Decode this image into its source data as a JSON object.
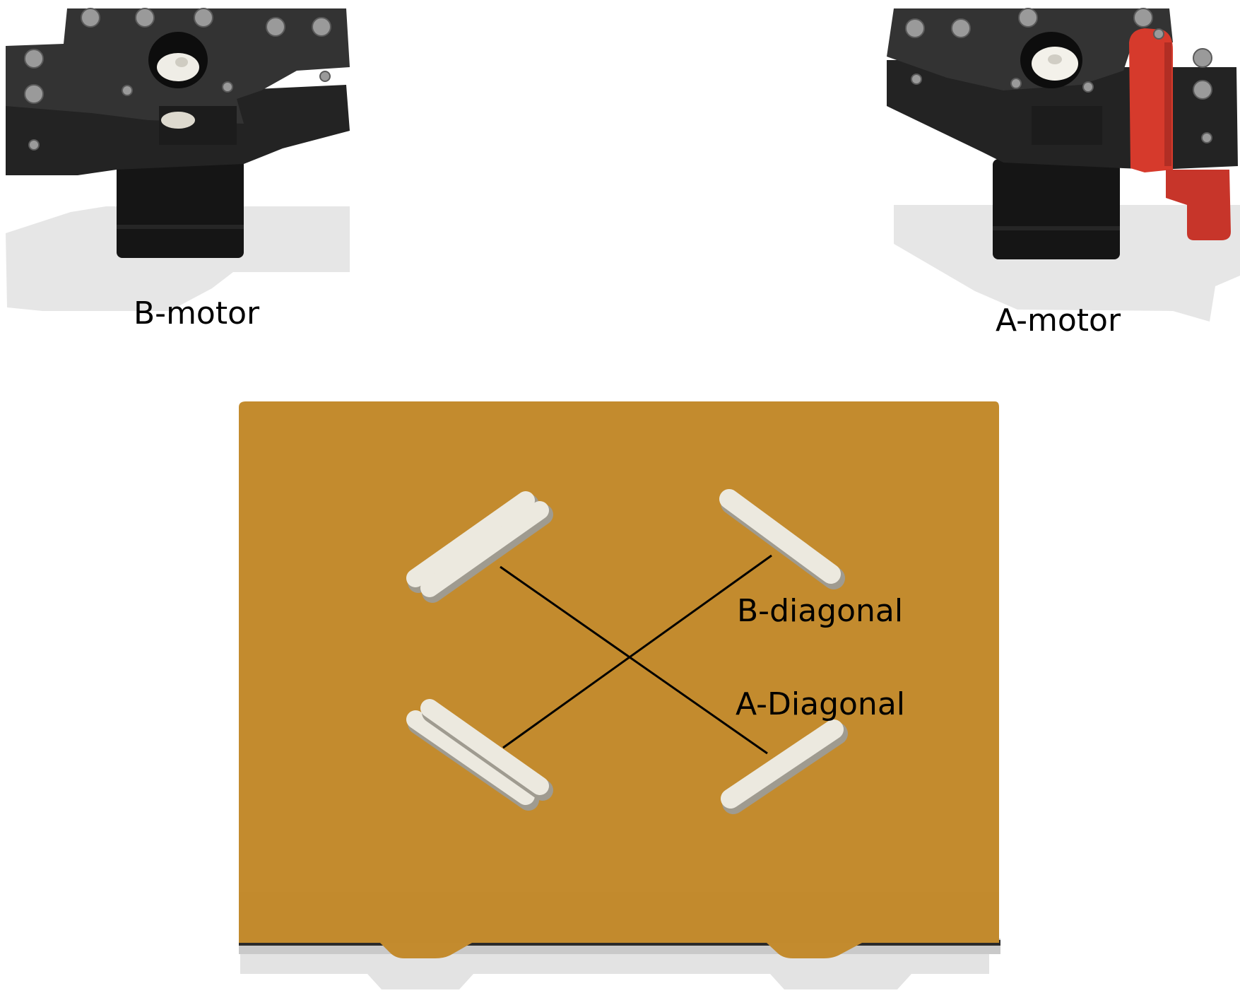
{
  "labels": {
    "b_motor": "B-motor",
    "a_motor": "A-motor",
    "b_diagonal": "B-diagonal",
    "a_diagonal": "A-Diagonal"
  },
  "colors": {
    "bed": "#C38B2E",
    "motor_plate": "#2C2C2C",
    "motor_body": "#151515",
    "tensioner": "#D63A2C",
    "bracket": "#ECE9DF",
    "line": "#000000"
  }
}
